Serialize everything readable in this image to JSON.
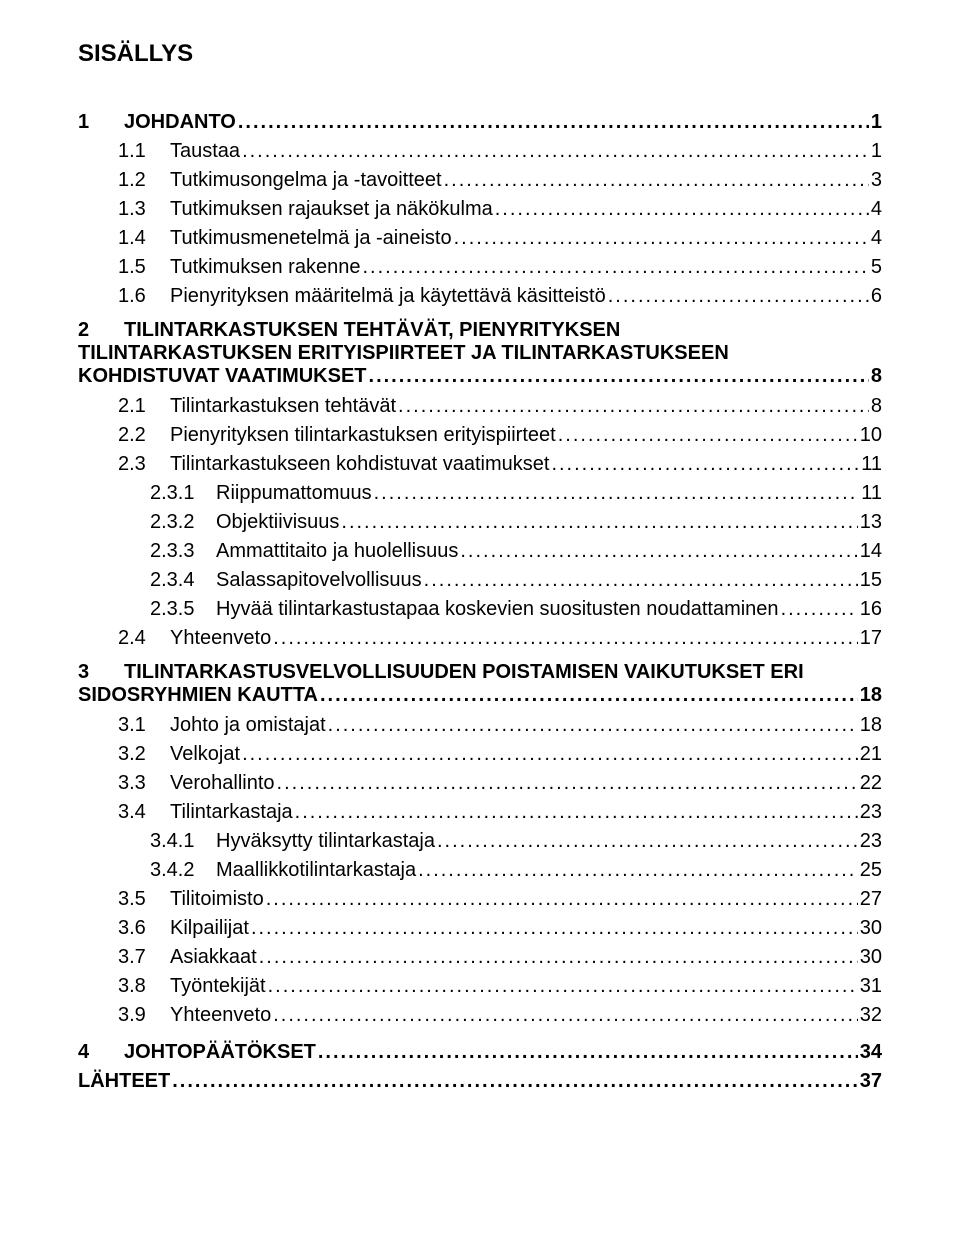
{
  "title": "SISÄLLYS",
  "items": [
    {
      "level": "lvl1",
      "bold": true,
      "num": "1",
      "numClass": "num1",
      "label": "JOHDANTO",
      "page": "1"
    },
    {
      "level": "lvl2",
      "num": "1.1",
      "numClass": "num2i",
      "label": "Taustaa",
      "page": "1"
    },
    {
      "level": "lvl2",
      "num": "1.2",
      "numClass": "num2i",
      "label": "Tutkimusongelma ja -tavoitteet",
      "page": "3"
    },
    {
      "level": "lvl2",
      "num": "1.3",
      "numClass": "num2i",
      "label": "Tutkimuksen rajaukset ja näkökulma",
      "page": "4"
    },
    {
      "level": "lvl2",
      "num": "1.4",
      "numClass": "num2i",
      "label": "Tutkimusmenetelmä ja -aineisto",
      "page": "4"
    },
    {
      "level": "lvl2",
      "num": "1.5",
      "numClass": "num2i",
      "label": "Tutkimuksen rakenne",
      "page": "5"
    },
    {
      "level": "lvl2",
      "num": "1.6",
      "numClass": "num2i",
      "label": "Pienyrityksen määritelmä ja käytettävä käsitteistö",
      "page": "6"
    },
    {
      "level": "wrap",
      "bold": true,
      "num": "2",
      "line1": "TILINTARKASTUKSEN TEHTÄVÄT, PIENYRITYKSEN",
      "line2_label": "TILINTARKASTUKSEN ERITYISPIIRTEET JA TILINTARKASTUKSEEN",
      "line3_label": "KOHDISTUVAT VAATIMUKSET",
      "page": "8"
    },
    {
      "level": "lvl2",
      "num": "2.1",
      "numClass": "num2i",
      "label": "Tilintarkastuksen tehtävät",
      "page": "8"
    },
    {
      "level": "lvl2",
      "num": "2.2",
      "numClass": "num2i",
      "label": "Pienyrityksen tilintarkastuksen erityispiirteet",
      "page": "10"
    },
    {
      "level": "lvl2",
      "num": "2.3",
      "numClass": "num2i",
      "label": "Tilintarkastukseen kohdistuvat vaatimukset",
      "page": "11"
    },
    {
      "level": "lvl3",
      "num": "2.3.1",
      "numClass": "num3",
      "label": "Riippumattomuus",
      "page": "11"
    },
    {
      "level": "lvl3",
      "num": "2.3.2",
      "numClass": "num3",
      "label": "Objektiivisuus",
      "page": "13"
    },
    {
      "level": "lvl3",
      "num": "2.3.3",
      "numClass": "num3",
      "label": "Ammattitaito ja huolellisuus",
      "page": "14"
    },
    {
      "level": "lvl3",
      "num": "2.3.4",
      "numClass": "num3",
      "label": "Salassapitovelvollisuus",
      "page": "15"
    },
    {
      "level": "lvl3",
      "num": "2.3.5",
      "numClass": "num3",
      "label": "Hyvää tilintarkastustapaa koskevien suositusten noudattaminen",
      "page": "16"
    },
    {
      "level": "lvl2",
      "num": "2.4",
      "numClass": "num2i",
      "label": "Yhteenveto",
      "page": "17"
    },
    {
      "level": "wrap2",
      "bold": true,
      "num": "3",
      "line1": "TILINTARKASTUSVELVOLLISUUDEN POISTAMISEN VAIKUTUKSET ERI",
      "line2_label": "SIDOSRYHMIEN KAUTTA",
      "page": "18"
    },
    {
      "level": "lvl2",
      "num": "3.1",
      "numClass": "num2i",
      "label": "Johto ja omistajat",
      "page": "18"
    },
    {
      "level": "lvl2",
      "num": "3.2",
      "numClass": "num2i",
      "label": "Velkojat",
      "page": "21"
    },
    {
      "level": "lvl2",
      "num": "3.3",
      "numClass": "num2i",
      "label": "Verohallinto",
      "page": "22"
    },
    {
      "level": "lvl2",
      "num": "3.4",
      "numClass": "num2i",
      "label": "Tilintarkastaja",
      "page": "23"
    },
    {
      "level": "lvl3",
      "num": "3.4.1",
      "numClass": "num3",
      "label": "Hyväksytty tilintarkastaja",
      "page": "23"
    },
    {
      "level": "lvl3",
      "num": "3.4.2",
      "numClass": "num3",
      "label": "Maallikkotilintarkastaja",
      "page": "25"
    },
    {
      "level": "lvl2",
      "num": "3.5",
      "numClass": "num2i",
      "label": "Tilitoimisto",
      "page": "27"
    },
    {
      "level": "lvl2",
      "num": "3.6",
      "numClass": "num2i",
      "label": "Kilpailijat",
      "page": "30"
    },
    {
      "level": "lvl2",
      "num": "3.7",
      "numClass": "num2i",
      "label": "Asiakkaat",
      "page": "30"
    },
    {
      "level": "lvl2",
      "num": "3.8",
      "numClass": "num2i",
      "label": "Työntekijät",
      "page": "31"
    },
    {
      "level": "lvl2",
      "num": "3.9",
      "numClass": "num2i",
      "label": "Yhteenveto",
      "page": "32"
    },
    {
      "level": "lvl1",
      "bold": true,
      "num": "4",
      "numClass": "num1",
      "label": "JOHTOPÄÄTÖKSET",
      "page": "34"
    },
    {
      "level": "lvl2b",
      "bold": true,
      "num": "",
      "numClass": "",
      "label": "LÄHTEET",
      "page": "37"
    }
  ]
}
